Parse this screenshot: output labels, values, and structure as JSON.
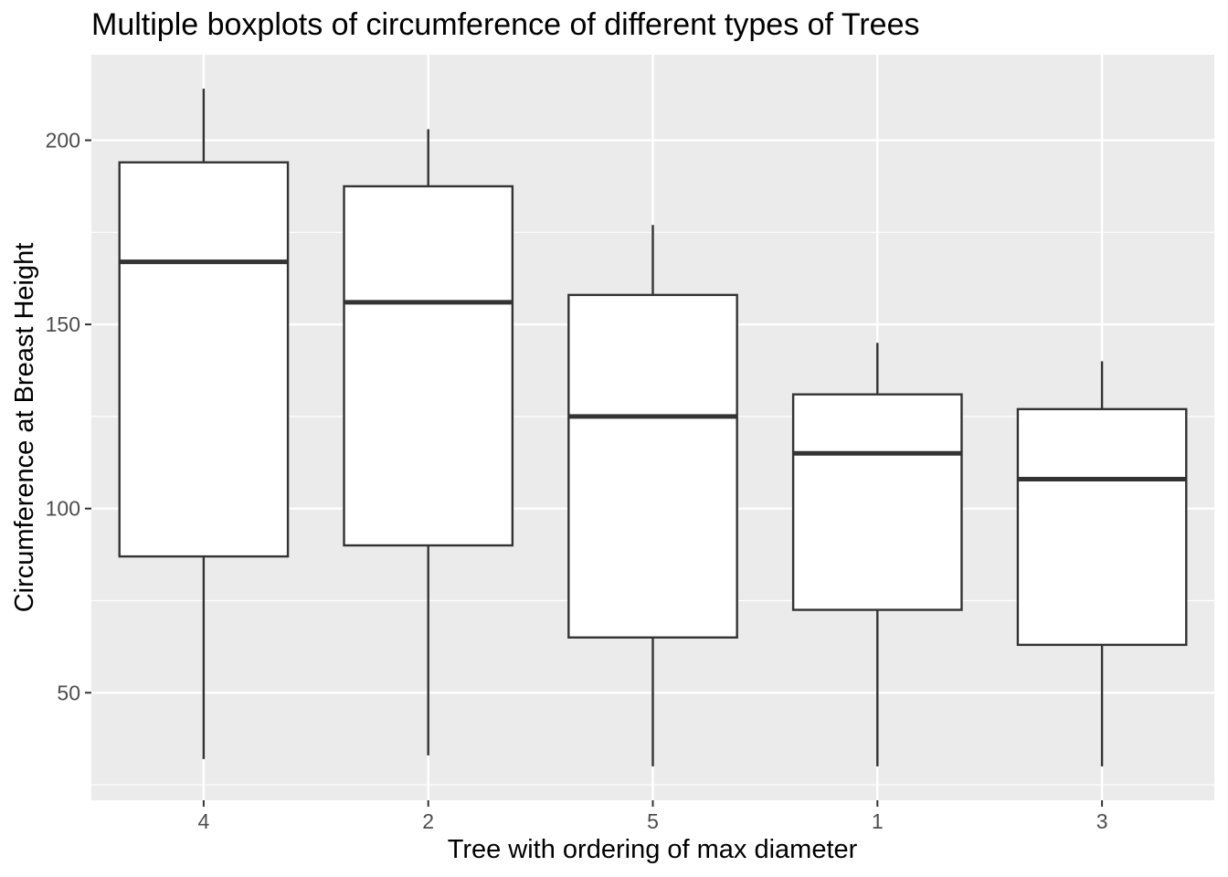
{
  "chart_data": {
    "type": "boxplot",
    "title": "Multiple boxplots of circumference of different types of Trees",
    "xlabel": "Tree with ordering of max diameter",
    "ylabel": "Circumference at Breast Height",
    "categories": [
      "4",
      "2",
      "5",
      "1",
      "3"
    ],
    "boxes": [
      {
        "category": "4",
        "whisker_low": 32,
        "q1": 87,
        "median": 167,
        "q3": 194,
        "whisker_high": 214
      },
      {
        "category": "2",
        "whisker_low": 33,
        "q1": 90,
        "median": 156,
        "q3": 187.5,
        "whisker_high": 203
      },
      {
        "category": "5",
        "whisker_low": 30,
        "q1": 65,
        "median": 125,
        "q3": 158,
        "whisker_high": 177
      },
      {
        "category": "1",
        "whisker_low": 30,
        "q1": 72.5,
        "median": 115,
        "q3": 131,
        "whisker_high": 145
      },
      {
        "category": "3",
        "whisker_low": 30,
        "q1": 63,
        "median": 108,
        "q3": 127,
        "whisker_high": 140
      }
    ],
    "y_ticks": [
      50,
      100,
      150,
      200
    ],
    "ylim": [
      20.8,
      223.2
    ],
    "grid": true,
    "colors": {
      "panel_background": "#ebebeb",
      "grid_line": "#ffffff",
      "box_fill": "#ffffff",
      "box_stroke": "#333333",
      "tick_label": "#4d4d4d",
      "tick_mark": "#333333"
    }
  }
}
